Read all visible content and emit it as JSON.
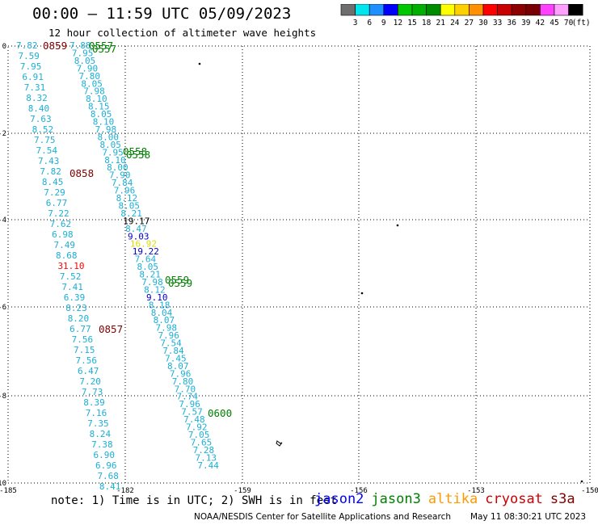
{
  "header": {
    "title": "00:00 — 11:59 UTC 05/09/2023",
    "subtitle": "12 hour collection of altimeter wave heights"
  },
  "colorbar": {
    "unit": "(ft)",
    "colors": [
      "#6e6e6e",
      "#00e5ee",
      "#1e90ff",
      "#0000ff",
      "#00c800",
      "#00b000",
      "#008c00",
      "#ffff00",
      "#ffd000",
      "#ff9000",
      "#ff0000",
      "#c80000",
      "#8c0000",
      "#780000",
      "#ff40ff",
      "#ffa0ff",
      "#000000"
    ],
    "labels": [
      "3",
      "6",
      "9",
      "12",
      "15",
      "18",
      "21",
      "24",
      "27",
      "30",
      "33",
      "36",
      "39",
      "42",
      "45",
      "70"
    ]
  },
  "map": {
    "x_ticks": [
      "-185",
      "-182",
      "-159",
      "-156",
      "-153",
      "-150"
    ],
    "y_ticks": [
      "0",
      "-2",
      "-4",
      "-6",
      "-8",
      "-10"
    ],
    "grid": "dotted",
    "colors": {
      "cyan": "#1cafd6",
      "jason3": "#008000",
      "cryosat": "#800000",
      "black": "#000000",
      "blue": "#0000cc",
      "yellow": "#dddd00",
      "red": "#ff0000"
    },
    "left_track": [
      "7.82",
      "7.59",
      "7.95",
      "6.91",
      "7.31",
      "8.32",
      "8.40",
      "7.63",
      "8.52",
      "7.75",
      "7.54",
      "7.43",
      "7.82",
      "8.45",
      "7.29",
      "6.77",
      "7.22",
      "7.62",
      "6.98",
      "7.49",
      "8.68",
      "31.10",
      "7.52",
      "7.41",
      "6.39",
      "8.23",
      "8.20",
      "6.77",
      "7.56",
      "7.15",
      "7.56",
      "6.47",
      "7.20",
      "7.73",
      "8.39",
      "7.16",
      "7.35",
      "8.24",
      "7.38",
      "6.90",
      "6.96",
      "7.68",
      "8.41"
    ],
    "mid_track": [
      "7.88",
      "7.95",
      "8.05",
      "7.90",
      "7.80",
      "8.05",
      "7.98",
      "8.10",
      "8.15",
      "8.05",
      "8.10",
      "7.98",
      "8.00",
      "8.05",
      "7.95",
      "8.10",
      "8.00",
      "7.90",
      "7.84",
      "7.96",
      "8.12",
      "8.05",
      "8.21",
      "19.17",
      "8.47",
      "9.03",
      "16.92",
      "19.22",
      "7.64",
      "8.05",
      "8.21",
      "7.98",
      "8.12",
      "9.10",
      "8.18",
      "8.04",
      "8.07",
      "7.98",
      "7.96",
      "7.54",
      "7.84",
      "7.45",
      "8.07",
      "7.96",
      "7.80",
      "7.70",
      "7.74",
      "7.96",
      "7.57",
      "7.48",
      "7.92",
      "7.05",
      "7.65",
      "7.28",
      "7.13",
      "7.44"
    ],
    "time_labels": [
      {
        "text": "0859",
        "kind": "cryosat"
      },
      {
        "text": "0557",
        "kind": "jason3"
      },
      {
        "text": "0558",
        "kind": "jason3"
      },
      {
        "text": "0858",
        "kind": "cryosat"
      },
      {
        "text": "0559",
        "kind": "jason3"
      },
      {
        "text": "0857",
        "kind": "cryosat"
      },
      {
        "text": "0600",
        "kind": "jason3"
      }
    ]
  },
  "note": "note: 1) Time is in UTC; 2) SWH is in feet",
  "legend": [
    {
      "label": "jason2",
      "color": "#0000ff"
    },
    {
      "label": "jason3",
      "color": "#008000"
    },
    {
      "label": "altika",
      "color": "#ff9900"
    },
    {
      "label": "cryosat",
      "color": "#cc0000"
    },
    {
      "label": "s3a",
      "color": "#800000"
    }
  ],
  "footer": {
    "credit": "NOAA/NESDIS Center for Satellite Applications and Research",
    "timestamp": "May 11 08:30:21 UTC 2023"
  }
}
